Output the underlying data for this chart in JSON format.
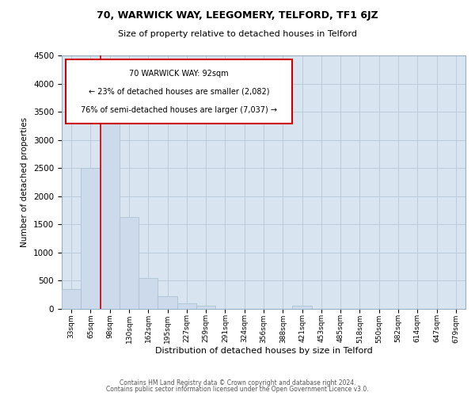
{
  "title1": "70, WARWICK WAY, LEEGOMERY, TELFORD, TF1 6JZ",
  "title2": "Size of property relative to detached houses in Telford",
  "xlabel": "Distribution of detached houses by size in Telford",
  "ylabel": "Number of detached properties",
  "footer1": "Contains HM Land Registry data © Crown copyright and database right 2024.",
  "footer2": "Contains public sector information licensed under the Open Government Licence v3.0.",
  "categories": [
    "33sqm",
    "65sqm",
    "98sqm",
    "130sqm",
    "162sqm",
    "195sqm",
    "227sqm",
    "259sqm",
    "291sqm",
    "324sqm",
    "356sqm",
    "388sqm",
    "421sqm",
    "453sqm",
    "485sqm",
    "518sqm",
    "550sqm",
    "582sqm",
    "614sqm",
    "647sqm",
    "679sqm"
  ],
  "values": [
    350,
    2500,
    3700,
    1625,
    550,
    220,
    100,
    60,
    0,
    0,
    0,
    0,
    60,
    0,
    0,
    0,
    0,
    0,
    0,
    0,
    0
  ],
  "bar_color": "#cddaeb",
  "bar_edge_color": "#a8becc",
  "annotation_text1": "70 WARWICK WAY: 92sqm",
  "annotation_text2": "← 23% of detached houses are smaller (2,082)",
  "annotation_text3": "76% of semi-detached houses are larger (7,037) →",
  "annotation_box_color": "#ffffff",
  "annotation_border_color": "#cc0000",
  "ylim": [
    0,
    4500
  ],
  "yticks": [
    0,
    500,
    1000,
    1500,
    2000,
    2500,
    3000,
    3500,
    4000,
    4500
  ],
  "grid_color": "#b8c8d8",
  "background_color": "#d8e4f0"
}
